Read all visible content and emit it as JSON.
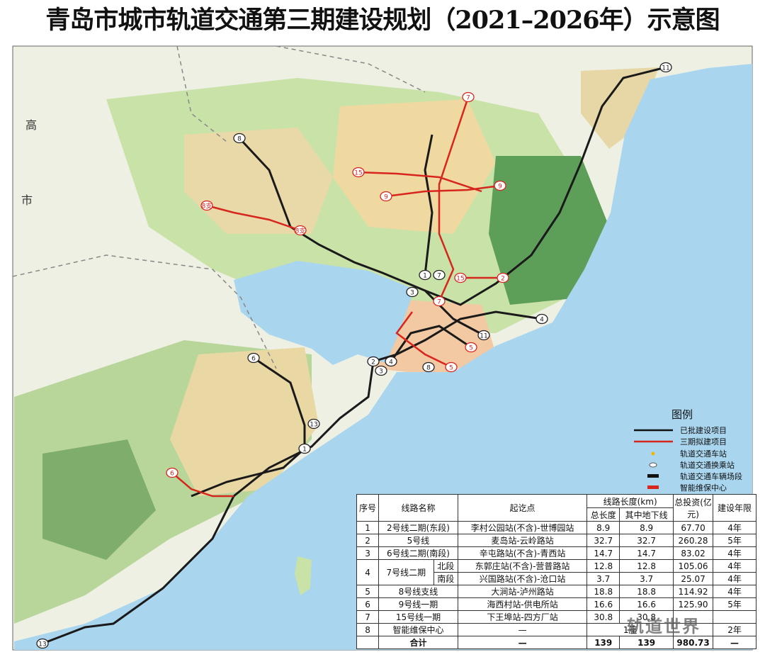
{
  "header": {
    "title": "青岛市城市轨道交通第三期建设规划（2021–2026年）示意图"
  },
  "map": {
    "side_labels": [
      "高",
      "市"
    ],
    "stations": [
      "11",
      "7",
      "8",
      "15",
      "9",
      "9",
      "8支",
      "8支",
      "1",
      "7",
      "15",
      "2",
      "3",
      "7",
      "4",
      "11",
      "5",
      "2",
      "4",
      "3",
      "8",
      "5",
      "6",
      "13",
      "1",
      "6",
      "13"
    ]
  },
  "legend": {
    "title": "图例",
    "items": [
      "已批建设项目",
      "三期拟建项目",
      "轨道交通车站",
      "轨道交通换乘站",
      "轨道交通车辆场段",
      "智能维保中心"
    ]
  },
  "table": {
    "headers": {
      "no": "序号",
      "name": "线路名称",
      "ends": "起讫点",
      "length": "线路长度(km)",
      "total": "总长度",
      "underground": "其中地下线",
      "invest": "总投资(亿元)",
      "years": "建设年限"
    },
    "rows": [
      [
        "1",
        "2号线二期(东段)",
        "李村公园站(不含)-世博园站",
        "8.9",
        "8.9",
        "67.70",
        "4年"
      ],
      [
        "2",
        "5号线",
        "麦岛站-云岭路站",
        "32.7",
        "32.7",
        "260.28",
        "5年"
      ],
      [
        "3",
        "6号线二期(南段)",
        "辛屯路站(不含)-青西站",
        "14.7",
        "14.7",
        "83.02",
        "4年"
      ],
      [
        "4",
        "7号线二期",
        "北段",
        "东郭庄站(不含)-营普路站",
        "12.8",
        "12.8",
        "105.06",
        "4年"
      ],
      [
        "南段",
        "兴国路站(不含)-沧口站",
        "3.7",
        "3.7",
        "25.07",
        "4年"
      ],
      [
        "5",
        "8号线支线",
        "大涧站-泸州路站",
        "18.8",
        "18.8",
        "114.92",
        "4年"
      ],
      [
        "6",
        "9号线一期",
        "海西村站-供电所站",
        "16.6",
        "16.6",
        "125.90",
        "5年"
      ],
      [
        "7",
        "15号线一期",
        "下王埠站-四方厂站",
        "30.8",
        "30.8"
      ],
      [
        "8",
        "智能维保中心",
        "—",
        "1座",
        "2年"
      ]
    ],
    "total": [
      "合计",
      "—",
      "139",
      "139",
      "980.73",
      "—"
    ]
  },
  "watermark": "轨道世界"
}
